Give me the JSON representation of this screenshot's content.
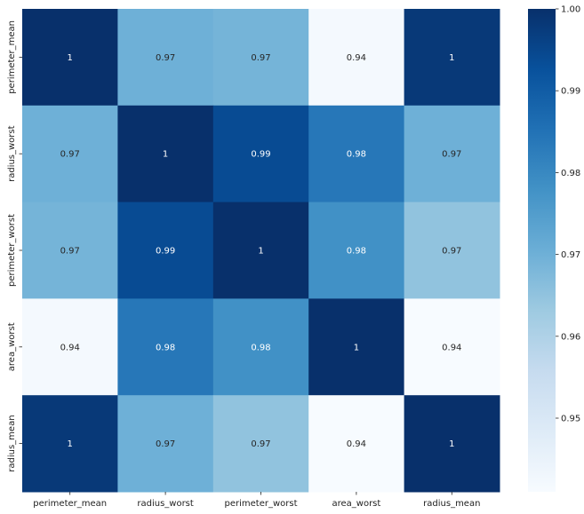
{
  "chart_data": {
    "type": "heatmap",
    "title": "",
    "xlabel": "",
    "ylabel": "",
    "x_labels": [
      "perimeter_mean",
      "radius_worst",
      "perimeter_worst",
      "area_worst",
      "radius_mean"
    ],
    "y_labels": [
      "perimeter_mean",
      "radius_worst",
      "perimeter_worst",
      "area_worst",
      "radius_mean"
    ],
    "values": [
      [
        1.0,
        0.97,
        0.969,
        0.942,
        0.998
      ],
      [
        0.97,
        1.0,
        0.994,
        0.984,
        0.97
      ],
      [
        0.969,
        0.994,
        1.0,
        0.978,
        0.965
      ],
      [
        0.942,
        0.984,
        0.978,
        1.0,
        0.941
      ],
      [
        0.998,
        0.97,
        0.965,
        0.941,
        1.0
      ]
    ],
    "annotations": [
      [
        "1",
        "0.97",
        "0.97",
        "0.94",
        "1"
      ],
      [
        "0.97",
        "1",
        "0.99",
        "0.98",
        "0.97"
      ],
      [
        "0.97",
        "0.99",
        "1",
        "0.98",
        "0.97"
      ],
      [
        "0.94",
        "0.98",
        "0.98",
        "1",
        "0.94"
      ],
      [
        "1",
        "0.97",
        "0.97",
        "0.94",
        "1"
      ]
    ],
    "colormap": "Blues",
    "colorbar": {
      "range": [
        0.941,
        1.0
      ],
      "ticks": [
        0.95,
        0.96,
        0.97,
        0.98,
        0.99,
        1.0
      ],
      "tick_labels": [
        "0.95",
        "0.96",
        "0.97",
        "0.98",
        "0.99",
        "1.00"
      ]
    }
  }
}
